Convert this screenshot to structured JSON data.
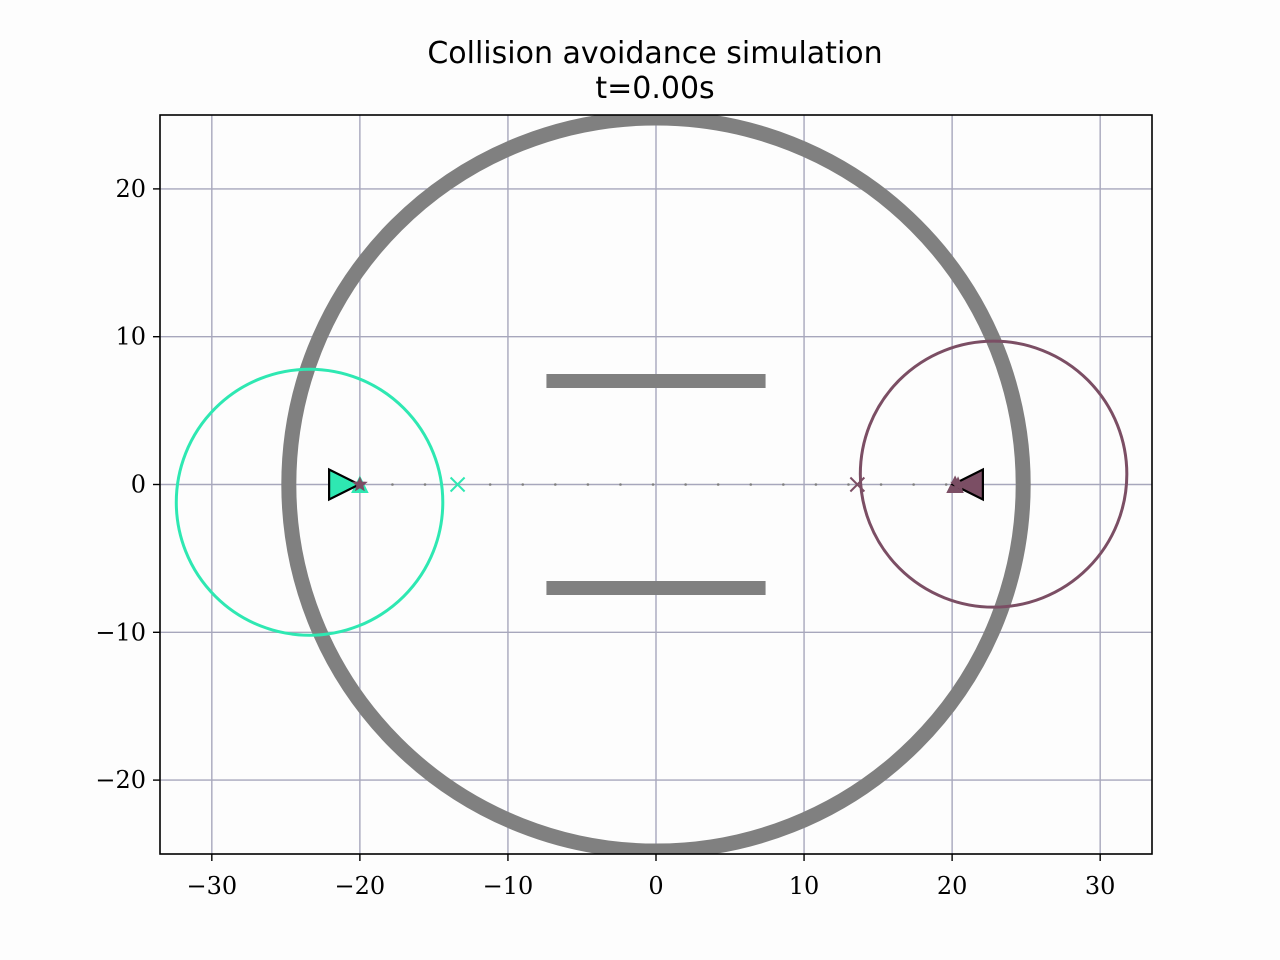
{
  "chart_data": {
    "type": "scatter",
    "title": "Collision avoidance simulation",
    "subtitle": "t=0.00s",
    "xlabel": "",
    "ylabel": "",
    "xlim": [
      -33.5,
      33.5
    ],
    "ylim": [
      -25,
      25
    ],
    "xticks": [
      -30,
      -20,
      -10,
      0,
      10,
      20,
      30
    ],
    "yticks": [
      -20,
      -10,
      0,
      10,
      20
    ],
    "xtick_labels": [
      "−30",
      "−20",
      "−10",
      "0",
      "10",
      "20",
      "30"
    ],
    "ytick_labels": [
      "−20",
      "−10",
      "0",
      "10",
      "20"
    ],
    "grid": true,
    "obstacles": {
      "color": "#808080",
      "boundary_circle": {
        "center": [
          0,
          0
        ],
        "radius": 24.8
      },
      "walls": [
        {
          "x": [
            -7.4,
            7.4
          ],
          "y": 7
        },
        {
          "x": [
            -7.4,
            7.4
          ],
          "y": -7
        }
      ]
    },
    "agents": [
      {
        "color": "#2ee8b2",
        "position": [
          -21.2,
          0
        ],
        "heading": "right",
        "goal": [
          -20,
          0
        ],
        "waypoint": [
          -13.4,
          0
        ],
        "sensing_circle": {
          "center": [
            -23.4,
            -1.2
          ],
          "radius": 9
        }
      },
      {
        "color": "#7b4e64",
        "position": [
          21.2,
          0
        ],
        "heading": "left",
        "goal": [
          20.2,
          0
        ],
        "waypoint": [
          13.6,
          0
        ],
        "sensing_circle": {
          "center": [
            22.8,
            0.7
          ],
          "radius": 9
        }
      }
    ],
    "path_dots": {
      "x": [
        -20,
        -17.8,
        -15.6,
        -13.4,
        -11.2,
        -9,
        -6.8,
        -4.6,
        -2.4,
        -0.2,
        2.0,
        4.2,
        6.4,
        8.6,
        10.8,
        13.0,
        15.2,
        17.4,
        19.6
      ],
      "y": 0
    }
  }
}
